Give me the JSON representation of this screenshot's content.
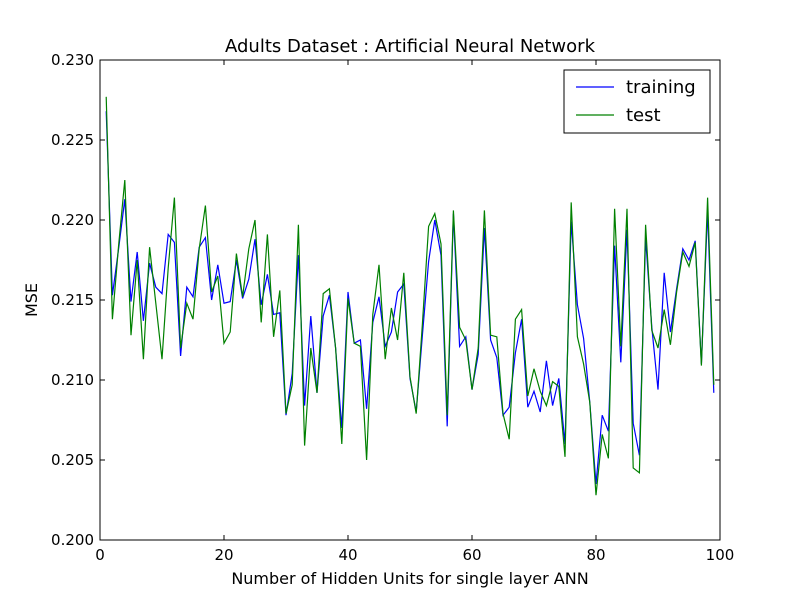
{
  "chart_data": {
    "type": "line",
    "title": "Adults Dataset :  Artificial Neural Network",
    "xlabel": "Number of Hidden Units for single layer ANN",
    "ylabel": "MSE",
    "xlim": [
      0,
      100
    ],
    "ylim": [
      0.2,
      0.23
    ],
    "xticks": [
      0,
      20,
      40,
      60,
      80,
      100
    ],
    "xtick_labels": [
      "0",
      "20",
      "40",
      "60",
      "80",
      "100"
    ],
    "yticks": [
      0.2,
      0.205,
      0.21,
      0.215,
      0.22,
      0.225,
      0.23
    ],
    "ytick_labels": [
      "0.200",
      "0.205",
      "0.210",
      "0.215",
      "0.220",
      "0.225",
      "0.230"
    ],
    "grid": false,
    "legend_position": "top-right",
    "x": [
      1,
      2,
      3,
      4,
      5,
      6,
      7,
      8,
      9,
      10,
      11,
      12,
      13,
      14,
      15,
      16,
      17,
      18,
      19,
      20,
      21,
      22,
      23,
      24,
      25,
      26,
      27,
      28,
      29,
      30,
      31,
      32,
      33,
      34,
      35,
      36,
      37,
      38,
      39,
      40,
      41,
      42,
      43,
      44,
      45,
      46,
      47,
      48,
      49,
      50,
      51,
      52,
      53,
      54,
      55,
      56,
      57,
      58,
      59,
      60,
      61,
      62,
      63,
      64,
      65,
      66,
      67,
      68,
      69,
      70,
      71,
      72,
      73,
      74,
      75,
      76,
      77,
      78,
      79,
      80,
      81,
      82,
      83,
      84,
      85,
      86,
      87,
      88,
      89,
      90,
      91,
      92,
      93,
      94,
      95,
      96,
      97,
      98,
      99
    ],
    "series": [
      {
        "name": "training",
        "color": "#0000ff",
        "values": [
          0.2268,
          0.2153,
          0.2182,
          0.2213,
          0.2149,
          0.218,
          0.2137,
          0.2173,
          0.2158,
          0.2154,
          0.2191,
          0.2186,
          0.2115,
          0.2158,
          0.2152,
          0.2183,
          0.2189,
          0.215,
          0.2172,
          0.2148,
          0.2149,
          0.2175,
          0.2151,
          0.2163,
          0.2188,
          0.2147,
          0.2166,
          0.2141,
          0.2142,
          0.2078,
          0.2104,
          0.2178,
          0.2084,
          0.214,
          0.2092,
          0.214,
          0.2153,
          0.212,
          0.207,
          0.2155,
          0.2123,
          0.2125,
          0.2082,
          0.2136,
          0.2152,
          0.2121,
          0.213,
          0.2155,
          0.216,
          0.2101,
          0.208,
          0.2128,
          0.2174,
          0.22,
          0.2178,
          0.2071,
          0.2204,
          0.2121,
          0.2127,
          0.2094,
          0.2116,
          0.2195,
          0.2125,
          0.2114,
          0.2078,
          0.2083,
          0.2117,
          0.2138,
          0.2083,
          0.2093,
          0.208,
          0.2112,
          0.2084,
          0.2101,
          0.206,
          0.2199,
          0.2147,
          0.2126,
          0.2086,
          0.2035,
          0.2078,
          0.2068,
          0.2184,
          0.2111,
          0.2194,
          0.2073,
          0.2053,
          0.2189,
          0.2133,
          0.2094,
          0.2167,
          0.213,
          0.2157,
          0.2182,
          0.2175,
          0.2187,
          0.211,
          0.2206,
          0.2092
        ]
      },
      {
        "name": "test",
        "color": "#008000",
        "values": [
          0.2277,
          0.2138,
          0.2184,
          0.2225,
          0.2128,
          0.2175,
          0.2113,
          0.2183,
          0.2148,
          0.2113,
          0.217,
          0.2214,
          0.212,
          0.2148,
          0.2138,
          0.2182,
          0.2209,
          0.2155,
          0.2165,
          0.2123,
          0.213,
          0.2179,
          0.2152,
          0.2182,
          0.22,
          0.2136,
          0.2191,
          0.2127,
          0.2156,
          0.2079,
          0.2097,
          0.2197,
          0.2059,
          0.212,
          0.2092,
          0.2154,
          0.2157,
          0.212,
          0.206,
          0.2151,
          0.2123,
          0.2121,
          0.205,
          0.2141,
          0.2172,
          0.2113,
          0.2145,
          0.2125,
          0.2167,
          0.2102,
          0.2079,
          0.2135,
          0.2196,
          0.2204,
          0.2185,
          0.2078,
          0.2206,
          0.2133,
          0.2125,
          0.2094,
          0.212,
          0.2206,
          0.2128,
          0.2127,
          0.2079,
          0.2063,
          0.2138,
          0.2144,
          0.209,
          0.2107,
          0.2093,
          0.2084,
          0.2099,
          0.2096,
          0.2052,
          0.2211,
          0.2127,
          0.211,
          0.2086,
          0.2028,
          0.2066,
          0.2051,
          0.2207,
          0.2121,
          0.2207,
          0.2045,
          0.2042,
          0.2197,
          0.2131,
          0.212,
          0.2144,
          0.2122,
          0.2155,
          0.218,
          0.2171,
          0.2186,
          0.2109,
          0.2214,
          0.2097
        ]
      }
    ]
  }
}
